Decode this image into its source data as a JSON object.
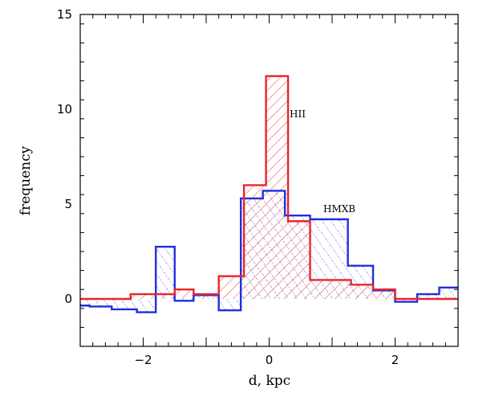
{
  "chart_data": {
    "type": "histogram",
    "xlabel": "d, kpc",
    "ylabel": "frequency",
    "xlim": [
      -3,
      3
    ],
    "ylim": [
      -2.5,
      15
    ],
    "xticks": [
      -2,
      0,
      2
    ],
    "yticks": [
      0,
      5,
      10,
      15
    ],
    "x_tick_labels": [
      "−2",
      "0",
      "2"
    ],
    "y_tick_labels": [
      "0",
      "5",
      "10",
      "15"
    ],
    "bin_width": 0.4,
    "series": [
      {
        "name": "HII",
        "label": "HII",
        "color": "#e8262b",
        "hatch": "solid-diagonal",
        "bins": [
          {
            "x0": -3.0,
            "x1": -2.2,
            "value": 0.0
          },
          {
            "x0": -2.2,
            "x1": -1.8,
            "value": 0.25
          },
          {
            "x0": -1.8,
            "x1": -1.5,
            "value": 0.25
          },
          {
            "x0": -1.5,
            "x1": -1.2,
            "value": 0.5
          },
          {
            "x0": -1.2,
            "x1": -0.8,
            "value": 0.25
          },
          {
            "x0": -0.8,
            "x1": -0.4,
            "value": 1.2
          },
          {
            "x0": -0.4,
            "x1": -0.05,
            "value": 6.0
          },
          {
            "x0": -0.05,
            "x1": 0.3,
            "value": 11.75
          },
          {
            "x0": 0.3,
            "x1": 0.65,
            "value": 4.1
          },
          {
            "x0": 0.65,
            "x1": 1.05,
            "value": 1.0
          },
          {
            "x0": 1.05,
            "x1": 1.3,
            "value": 1.0
          },
          {
            "x0": 1.3,
            "x1": 1.65,
            "value": 0.75
          },
          {
            "x0": 1.65,
            "x1": 2.0,
            "value": 0.5
          },
          {
            "x0": 2.0,
            "x1": 2.3,
            "value": 0.0
          },
          {
            "x0": 2.3,
            "x1": 3.0,
            "value": 0.0
          }
        ]
      },
      {
        "name": "HMXB",
        "label": "HMXB",
        "color": "#1f2fdc",
        "hatch": "dotted-diagonal",
        "bins": [
          {
            "x0": -3.0,
            "x1": -2.85,
            "value": -0.35
          },
          {
            "x0": -2.85,
            "x1": -2.5,
            "value": -0.4
          },
          {
            "x0": -2.5,
            "x1": -2.1,
            "value": -0.55
          },
          {
            "x0": -2.1,
            "x1": -1.8,
            "value": -0.7
          },
          {
            "x0": -1.8,
            "x1": -1.5,
            "value": 2.75
          },
          {
            "x0": -1.5,
            "x1": -1.2,
            "value": -0.1
          },
          {
            "x0": -1.2,
            "x1": -0.8,
            "value": 0.2
          },
          {
            "x0": -0.8,
            "x1": -0.45,
            "value": -0.6
          },
          {
            "x0": -0.45,
            "x1": -0.1,
            "value": 5.3
          },
          {
            "x0": -0.1,
            "x1": 0.25,
            "value": 5.7
          },
          {
            "x0": 0.25,
            "x1": 0.65,
            "value": 4.4
          },
          {
            "x0": 0.65,
            "x1": 1.25,
            "value": 4.2
          },
          {
            "x0": 1.25,
            "x1": 1.65,
            "value": 1.75
          },
          {
            "x0": 1.65,
            "x1": 2.0,
            "value": 0.45
          },
          {
            "x0": 2.0,
            "x1": 2.35,
            "value": -0.15
          },
          {
            "x0": 2.35,
            "x1": 2.7,
            "value": 0.25
          },
          {
            "x0": 2.7,
            "x1": 3.0,
            "value": 0.6
          }
        ]
      }
    ]
  }
}
